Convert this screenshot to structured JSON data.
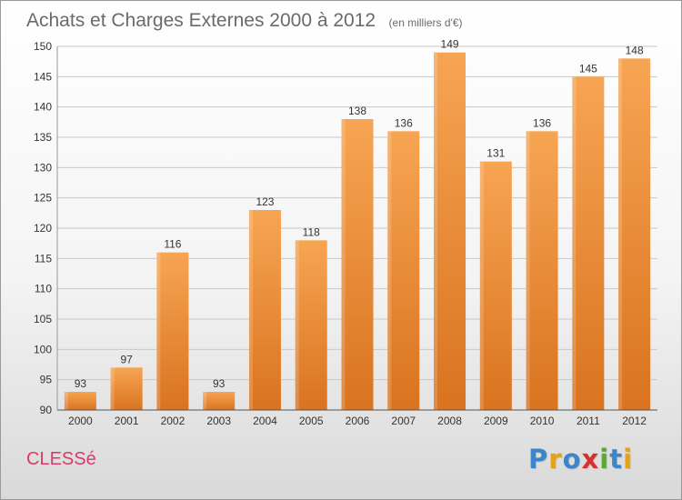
{
  "chart_data": {
    "type": "bar",
    "title": "Achats et Charges Externes 2000 à 2012",
    "subtitle": "(en milliers d'€)",
    "xlabel": "",
    "ylabel": "",
    "categories": [
      "2000",
      "2001",
      "2002",
      "2003",
      "2004",
      "2005",
      "2006",
      "2007",
      "2008",
      "2009",
      "2010",
      "2011",
      "2012"
    ],
    "values": [
      93,
      97,
      116,
      93,
      123,
      118,
      138,
      136,
      149,
      131,
      136,
      145,
      148
    ],
    "ylim": [
      90,
      150
    ],
    "yticks": [
      90,
      95,
      100,
      105,
      110,
      115,
      120,
      125,
      130,
      135,
      140,
      145,
      150
    ],
    "grid": true,
    "legend": "none",
    "bar_color_top": "#f7a553",
    "bar_color_bottom": "#d9731f"
  },
  "footer": {
    "commune": "CLESSé",
    "brand": "Proxiti",
    "brand_letters": [
      {
        "ch": "P",
        "color": "#3a86c8"
      },
      {
        "ch": "r",
        "color": "#e3a21a"
      },
      {
        "ch": "o",
        "color": "#3a86c8"
      },
      {
        "ch": "x",
        "color": "#d92f2f"
      },
      {
        "ch": "i",
        "color": "#5aa832"
      },
      {
        "ch": "t",
        "color": "#3a86c8"
      },
      {
        "ch": "i",
        "color": "#e3a21a"
      }
    ]
  }
}
